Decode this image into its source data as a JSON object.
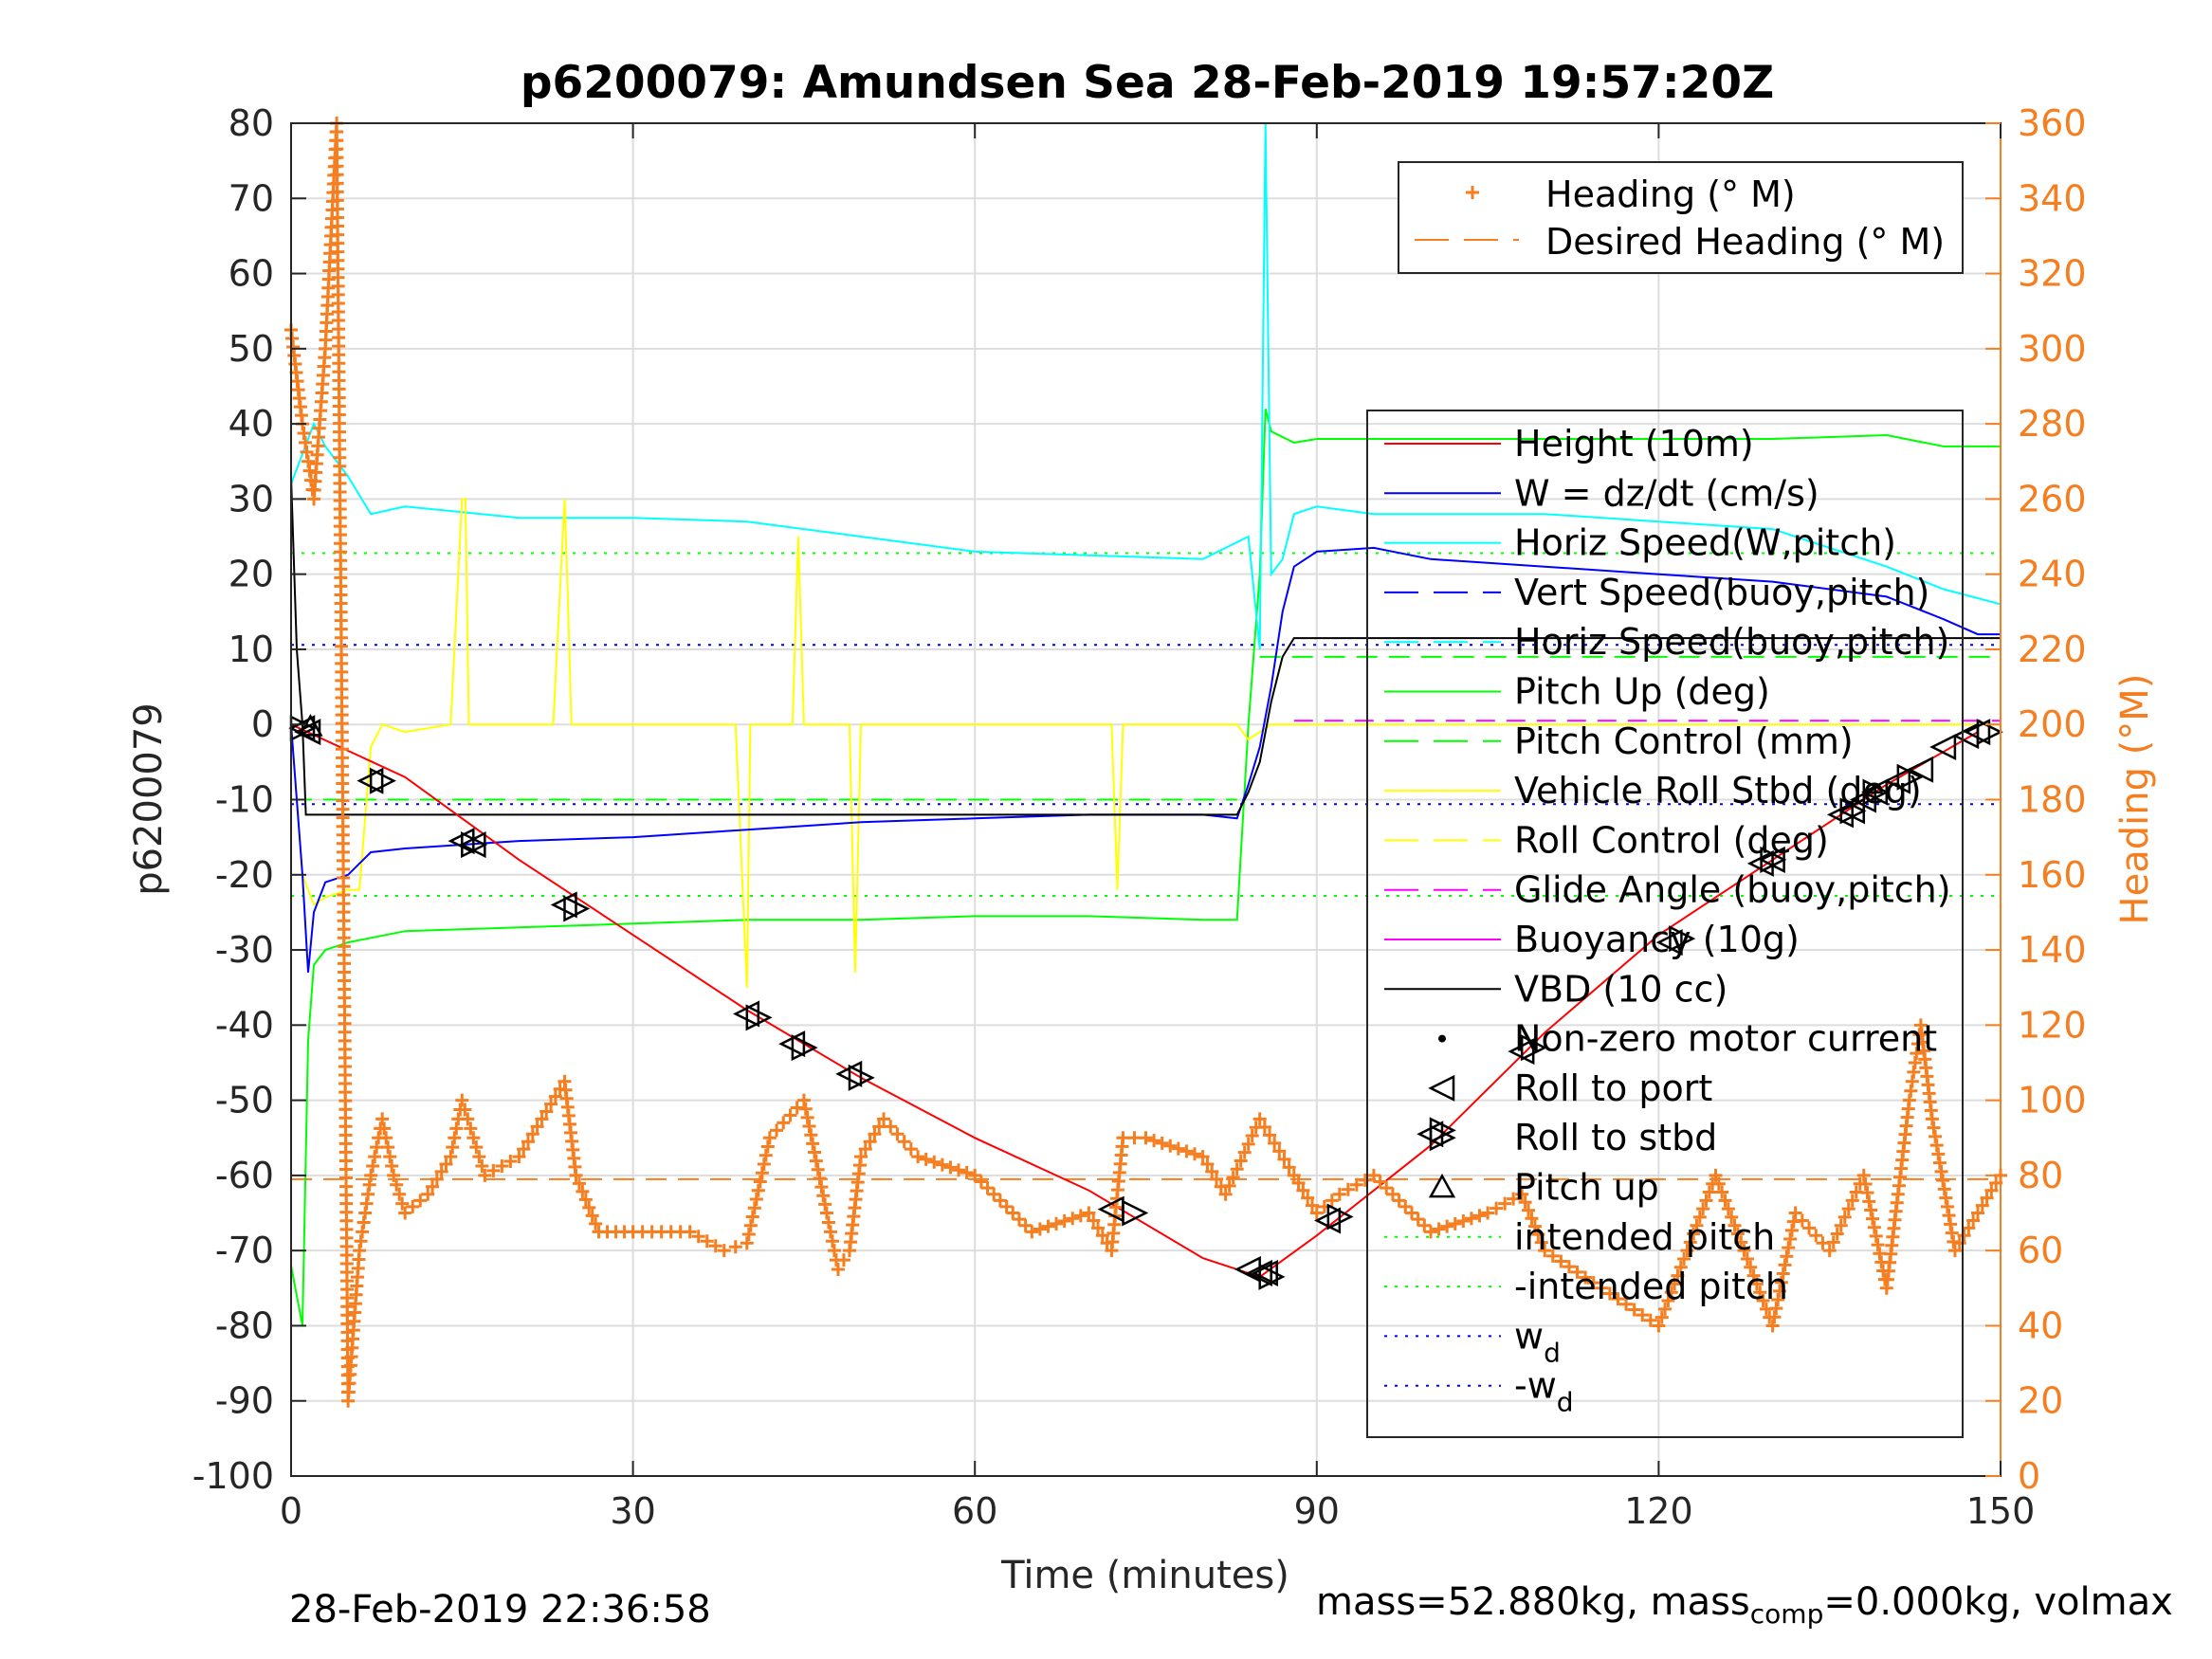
{
  "chart_data": {
    "type": "line",
    "title": "p6200079: Amundsen Sea 28-Feb-2019 19:57:20Z",
    "xlabel": "Time (minutes)",
    "ylabel": "p6200079",
    "y2label": "Heading (°M)",
    "xlim": [
      0,
      150
    ],
    "ylim": [
      -100,
      80
    ],
    "y2lim": [
      0,
      360
    ],
    "xticks": [
      0,
      30,
      60,
      90,
      120,
      150
    ],
    "xtick_labels": [
      "0",
      "30",
      "60",
      "90",
      "120",
      "150"
    ],
    "yticks": [
      80,
      70,
      60,
      50,
      40,
      30,
      20,
      10,
      0,
      -10,
      -20,
      -30,
      -40,
      -50,
      -60,
      -70,
      -80,
      -90,
      -100
    ],
    "ytick_labels": [
      "80",
      "70",
      "60",
      "50",
      "40",
      "30",
      "20",
      "10",
      "0",
      "-10",
      "-20",
      "-30",
      "-40",
      "-50",
      "-60",
      "-70",
      "-80",
      "-90",
      "-100"
    ],
    "y2ticks": [
      360,
      340,
      320,
      300,
      280,
      260,
      240,
      220,
      200,
      180,
      160,
      140,
      120,
      100,
      80,
      60,
      40,
      20,
      0
    ],
    "y2tick_labels": [
      "360",
      "340",
      "320",
      "300",
      "280",
      "260",
      "240",
      "220",
      "200",
      "180",
      "160",
      "140",
      "120",
      "100",
      "80",
      "60",
      "40",
      "20",
      "0"
    ],
    "grid": true,
    "legend_top": {
      "placement": "top-right",
      "entries": [
        "Heading (° M)",
        "Desired Heading (° M)"
      ]
    },
    "legend_main": {
      "placement": "right",
      "entries": [
        {
          "label": "Height (10m)",
          "color": "#ff0000",
          "style": "solid"
        },
        {
          "label": "W = dz/dt (cm/s)",
          "color": "#0000ff",
          "style": "solid"
        },
        {
          "label": "Horiz Speed(W,pitch)",
          "color": "#00ffff",
          "style": "solid"
        },
        {
          "label": "Vert Speed(buoy,pitch)",
          "color": "#0000ff",
          "style": "dashed"
        },
        {
          "label": "Horiz Speed(buoy,pitch)",
          "color": "#00ffff",
          "style": "dashed"
        },
        {
          "label": "Pitch Up (deg)",
          "color": "#00ff00",
          "style": "solid"
        },
        {
          "label": "Pitch Control (mm)",
          "color": "#00ff00",
          "style": "dashed"
        },
        {
          "label": "Vehicle Roll Stbd (deg)",
          "color": "#ffff00",
          "style": "solid"
        },
        {
          "label": "Roll Control (deg)",
          "color": "#ffff00",
          "style": "dashed"
        },
        {
          "label": "Glide Angle (buoy,pitch)",
          "color": "#ff00ff",
          "style": "dashed"
        },
        {
          "label": "Buoyancy (10g)",
          "color": "#ff00ff",
          "style": "solid"
        },
        {
          "label": "VBD (10 cc)",
          "color": "#000000",
          "style": "solid"
        },
        {
          "label": "Non-zero motor current",
          "color": "#000000",
          "style": "dot"
        },
        {
          "label": "Roll to port",
          "color": "#000000",
          "style": "tri-left"
        },
        {
          "label": "Roll to stbd",
          "color": "#000000",
          "style": "tri-right"
        },
        {
          "label": "Pitch up",
          "color": "#000000",
          "style": "tri-up"
        },
        {
          "label": "intended pitch",
          "color": "#00ff00",
          "style": "dotted"
        },
        {
          "label": "-intended pitch",
          "color": "#00ff00",
          "style": "dotted"
        },
        {
          "label": "w",
          "sub": "d",
          "color": "#0000ff",
          "style": "dotted"
        },
        {
          "label": "-w",
          "sub": "d",
          "color": "#0000ff",
          "style": "dotted"
        }
      ]
    },
    "colors": {
      "heading": "#f57f20",
      "right_axis": "#f57f20"
    },
    "reference_lines": {
      "intended_pitch": 22.8,
      "neg_intended_pitch": -22.8,
      "w_d": 10.6,
      "neg_w_d": -10.6,
      "desired_heading_deg": 79
    },
    "series": [
      {
        "name": "Height (10m)",
        "color": "#ff0000",
        "x": [
          0,
          10,
          20,
          30,
          40,
          50,
          60,
          70,
          80,
          85,
          90,
          100,
          110,
          120,
          130,
          140,
          148
        ],
        "y": [
          0,
          -7,
          -18,
          -28,
          -38,
          -47,
          -55,
          -62,
          -71,
          -73.5,
          -68,
          -56,
          -41,
          -28,
          -18,
          -8,
          -1
        ]
      },
      {
        "name": "W = dz/dt (cm/s)",
        "color": "#0000ff",
        "x": [
          0,
          1,
          1.5,
          2,
          3,
          5,
          7,
          10,
          20,
          30,
          40,
          50,
          60,
          70,
          80,
          83,
          84,
          85,
          86,
          87,
          88,
          90,
          95,
          100,
          110,
          120,
          130,
          140,
          145,
          148,
          150
        ],
        "y": [
          0,
          -20,
          -33,
          -25,
          -21,
          -20,
          -17,
          -16.5,
          -15.5,
          -15,
          -14,
          -13,
          -12.5,
          -12,
          -12,
          -12.5,
          -8,
          -3,
          5,
          15,
          21,
          23,
          23.5,
          22,
          21,
          20,
          19,
          17,
          14,
          12,
          12
        ]
      },
      {
        "name": "Horiz Speed(W,pitch)",
        "color": "#00ffff",
        "x": [
          0,
          1,
          2,
          3,
          5,
          7,
          10,
          20,
          30,
          40,
          50,
          60,
          70,
          80,
          84,
          85,
          85.5,
          86,
          87,
          88,
          90,
          95,
          100,
          110,
          120,
          130,
          140,
          145,
          150
        ],
        "y": [
          32,
          36,
          40,
          37,
          33,
          28,
          29,
          27.5,
          27.5,
          27,
          25,
          23,
          22.5,
          22,
          25,
          10,
          80,
          20,
          22,
          28,
          29,
          28,
          28,
          28,
          27,
          26,
          21,
          18,
          16
        ]
      },
      {
        "name": "Pitch Up (deg)",
        "color": "#00ff00",
        "x": [
          0,
          1,
          1.5,
          2,
          3,
          5,
          10,
          20,
          30,
          40,
          50,
          60,
          70,
          80,
          83,
          84,
          85,
          85.5,
          86,
          88,
          90,
          100,
          110,
          120,
          130,
          140,
          145,
          150
        ],
        "y": [
          -72,
          -80,
          -42,
          -32,
          -30,
          -29,
          -27.5,
          -27,
          -26.5,
          -26,
          -26,
          -25.5,
          -25.5,
          -26,
          -26,
          0,
          20,
          42,
          39,
          37.5,
          38,
          38,
          38,
          38,
          38,
          38.5,
          37,
          37
        ]
      },
      {
        "name": "Vehicle Roll Stbd (deg)",
        "color": "#ffff00",
        "x": [
          0,
          1,
          2,
          3,
          5,
          6,
          7,
          8,
          10,
          14,
          15,
          15.3,
          15.6,
          16,
          20,
          23,
          24,
          24.3,
          24.6,
          25,
          30,
          39,
          40,
          40.3,
          41,
          44,
          44.5,
          45,
          49,
          49.5,
          50,
          60,
          72,
          72.5,
          73,
          80,
          83,
          84,
          86,
          90,
          100,
          110,
          120,
          130,
          140,
          145,
          148,
          150
        ],
        "y": [
          0,
          -20,
          -24,
          -23,
          -22,
          -22,
          -3,
          0,
          -1,
          0,
          30,
          30,
          0,
          0,
          0,
          0,
          30,
          16,
          0,
          0,
          0,
          0,
          -35,
          0,
          0,
          0,
          25,
          0,
          0,
          -33,
          0,
          0,
          0,
          -22,
          0,
          0,
          0,
          -2,
          0,
          0,
          0,
          0,
          0,
          0,
          0,
          0,
          0,
          0
        ]
      },
      {
        "name": "Glide Angle (buoy,pitch)",
        "color": "#ff00ff",
        "x": [
          88,
          150
        ],
        "y": [
          0.5,
          0.5
        ]
      },
      {
        "name": "VBD (10 cc)",
        "color": "#000000",
        "x": [
          0,
          0.5,
          1,
          1.3,
          2,
          10,
          30,
          60,
          83,
          84,
          85,
          86,
          87,
          88,
          90,
          120,
          150
        ],
        "y": [
          33,
          10,
          0,
          -12,
          -12,
          -12,
          -12,
          -12,
          -12,
          -9,
          -5,
          3,
          9,
          11.5,
          11.5,
          11.5,
          11.5
        ]
      },
      {
        "name": "Heading (° M)",
        "color": "#f57f20",
        "axis": "right",
        "marker": "+",
        "x": [
          0,
          1,
          2,
          3,
          3.5,
          4,
          5,
          6,
          7,
          8,
          9,
          10,
          12,
          14,
          15,
          16,
          17,
          20,
          22,
          24,
          25,
          27,
          30,
          35,
          38,
          40,
          42,
          45,
          47,
          48,
          49,
          50,
          52,
          55,
          60,
          65,
          70,
          72,
          73,
          75,
          80,
          82,
          85,
          88,
          90,
          92,
          95,
          100,
          105,
          108,
          110,
          115,
          120,
          125,
          130,
          132,
          135,
          138,
          140,
          142,
          143,
          144,
          146,
          148,
          150
        ],
        "y": [
          305,
          280,
          260,
          300,
          330,
          360,
          20,
          60,
          80,
          95,
          80,
          70,
          75,
          85,
          100,
          90,
          80,
          85,
          95,
          105,
          80,
          65,
          65,
          65,
          60,
          62,
          90,
          100,
          70,
          55,
          60,
          85,
          95,
          85,
          80,
          65,
          70,
          60,
          90,
          90,
          85,
          75,
          95,
          80,
          70,
          75,
          80,
          65,
          70,
          75,
          60,
          50,
          40,
          80,
          40,
          70,
          60,
          80,
          50,
          100,
          120,
          95,
          60,
          70,
          80
        ]
      }
    ],
    "markers": {
      "roll_to_port": {
        "x": [
          1,
          1.5,
          7,
          15,
          16,
          24,
          40,
          44,
          49,
          72,
          84,
          85,
          85.5,
          91,
          100,
          108,
          121,
          129,
          130,
          136,
          137,
          138,
          139,
          141,
          143,
          145,
          147,
          148
        ],
        "y": [
          -0.5,
          -1,
          -7.5,
          -15.5,
          -16,
          -24,
          -38.5,
          -42.5,
          -46.5,
          -64.5,
          -72.5,
          -73,
          -73,
          -66,
          -54.5,
          -43.5,
          -29,
          -18.5,
          -18,
          -12,
          -11.5,
          -10,
          -9,
          -7.5,
          -6,
          -3,
          -1.5,
          -1
        ]
      },
      "roll_to_stbd": {
        "x": [
          1,
          8,
          16,
          25,
          41,
          45,
          50,
          74,
          86,
          92,
          101,
          109,
          122,
          130,
          137,
          139,
          142,
          149
        ],
        "y": [
          -0.5,
          -7.5,
          -16,
          -24.5,
          -39,
          -43,
          -47,
          -65,
          -73.5,
          -65.5,
          -54,
          -43,
          -28.5,
          -18,
          -11.5,
          -9,
          -7,
          -1
        ]
      },
      "pitch_up": {
        "x": [
          1.7
        ],
        "y": [
          -0.3
        ]
      }
    }
  },
  "footer": {
    "timestamp": "28-Feb-2019 22:36:58",
    "mass_text": "mass=52.880kg, mass",
    "mass_sub": "comp",
    "mass_rest": "=0.000kg, volmax"
  }
}
